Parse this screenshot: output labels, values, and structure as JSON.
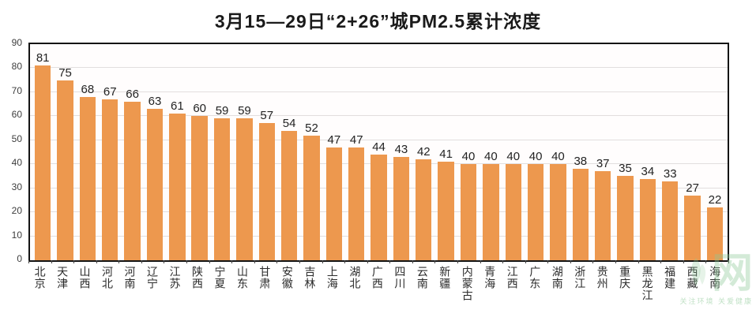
{
  "title": "3月15—29日“2+26”城PM2.5累计浓度",
  "watermark": {
    "glyph": "网",
    "tagline": "关注环境 关爱健康",
    "color": "#8cc896"
  },
  "chart_data": {
    "type": "bar",
    "title": "3月15—29日“2+26”城PM2.5累计浓度",
    "categories": [
      "北京",
      "天津",
      "山西",
      "河北",
      "河南",
      "辽宁",
      "江苏",
      "陕西",
      "宁夏",
      "山东",
      "甘肃",
      "安徽",
      "吉林",
      "上海",
      "湖北",
      "广西",
      "四川",
      "云南",
      "新疆",
      "内蒙古",
      "青海",
      "江西",
      "广东",
      "湖南",
      "浙江",
      "贵州",
      "重庆",
      "黑龙江",
      "福建",
      "西藏",
      "海南"
    ],
    "values": [
      81,
      75,
      68,
      67,
      66,
      63,
      61,
      60,
      59,
      59,
      57,
      54,
      52,
      47,
      47,
      44,
      43,
      42,
      41,
      40,
      40,
      40,
      40,
      40,
      38,
      37,
      35,
      34,
      33,
      27,
      22
    ],
    "xlabel": "",
    "ylabel": "",
    "ylim": [
      0,
      90
    ],
    "ytick_step": 10,
    "grid": true,
    "legend": false,
    "value_labels": true,
    "bar_color": "#ED984E",
    "gridline_color": "#e2dede",
    "axis_frame_color": "#141414"
  }
}
